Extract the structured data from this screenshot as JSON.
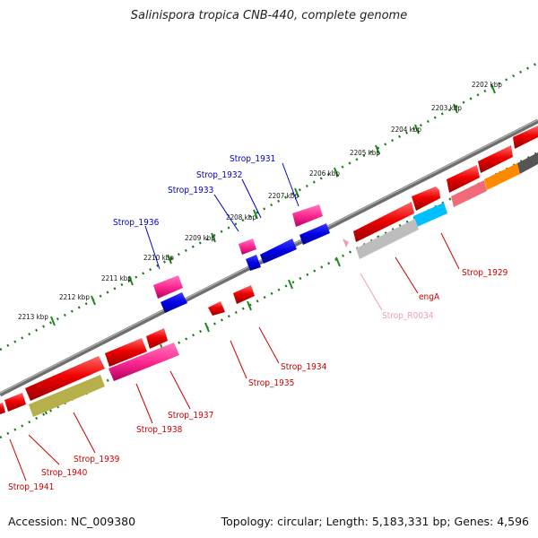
{
  "title": "Salinispora tropica CNB-440, complete genome",
  "accession": "Accession: NC_009380",
  "stats": "Topology: circular; Length: 5,183,331 bp; Genes: 4,596",
  "ticks": [
    "2202 kbp",
    "2203 kbp",
    "2204 kbp",
    "2205 kbp",
    "2206 kbp",
    "2207 kbp",
    "2208 kbp",
    "2209 kbp",
    "2210 kbp",
    "2211 kbp",
    "2212 kbp",
    "2213 kbp"
  ],
  "colors": {
    "cds": "#ff0000",
    "cds_highlight": "#ff3399",
    "cds_blue": "#0000ee",
    "backbone": "#7f7f7f",
    "tick_green": "#2a8a2a",
    "label_red": "#cc0000",
    "label_blue": "#0000cc",
    "label_pink": "#f29bb7"
  },
  "labels_blue": [
    "Strop_1931",
    "Strop_1932",
    "Strop_1933",
    "Strop_1936"
  ],
  "labels_red": [
    "Strop_1929",
    "engA",
    "Strop_1934",
    "Strop_1935",
    "Strop_1937",
    "Strop_1938",
    "Strop_1939",
    "Strop_1940",
    "Strop_1941"
  ],
  "labels_pink": [
    "Strop_R0034"
  ]
}
